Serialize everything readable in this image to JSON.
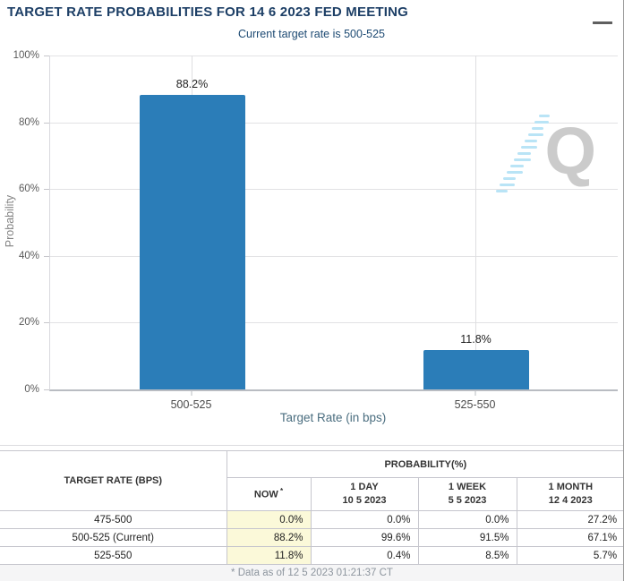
{
  "header": {
    "title": "TARGET RATE PROBABILITIES FOR 14 6 2023 FED MEETING",
    "subtitle": "Current target rate is 500-525",
    "menu_icon": "hamburger"
  },
  "watermark_letter": "Q",
  "colors": {
    "bar": "#2b7db8",
    "title": "#1d3f66",
    "now_highlight": "#fbf9d9",
    "watermark_gray": "#cbcbcb",
    "watermark_blue": "#b9e4f6"
  },
  "chart_data": {
    "type": "bar",
    "title": "TARGET RATE PROBABILITIES FOR 14 6 2023 FED MEETING",
    "subtitle": "Current target rate is 500-525",
    "categories": [
      "500-525",
      "525-550"
    ],
    "values": [
      88.2,
      11.8
    ],
    "value_labels": [
      "88.2%",
      "11.8%"
    ],
    "xlabel": "Target Rate (in bps)",
    "ylabel": "Probability",
    "ylim": [
      0,
      100
    ],
    "yticks": [
      0,
      20,
      40,
      60,
      80,
      100
    ],
    "ytick_labels": [
      "0%",
      "20%",
      "40%",
      "60%",
      "80%",
      "100%"
    ],
    "grid": true,
    "legend": false,
    "bar_color": "#2b7db8"
  },
  "table": {
    "rate_header": "TARGET RATE (BPS)",
    "group_header": "PROBABILITY(%)",
    "columns": [
      {
        "label": "NOW",
        "sup": "*",
        "date": ""
      },
      {
        "label": "1 DAY",
        "date": "10 5 2023"
      },
      {
        "label": "1 WEEK",
        "date": "5 5 2023"
      },
      {
        "label": "1 MONTH",
        "date": "12 4 2023"
      }
    ],
    "rows": [
      {
        "rate": "475-500",
        "values": [
          "0.0%",
          "0.0%",
          "0.0%",
          "27.2%"
        ]
      },
      {
        "rate": "500-525 (Current)",
        "values": [
          "88.2%",
          "99.6%",
          "91.5%",
          "67.1%"
        ]
      },
      {
        "rate": "525-550",
        "values": [
          "11.8%",
          "0.4%",
          "8.5%",
          "5.7%"
        ]
      }
    ]
  },
  "footer": {
    "note": "* Data as of 12 5 2023 01:21:37 CT"
  }
}
